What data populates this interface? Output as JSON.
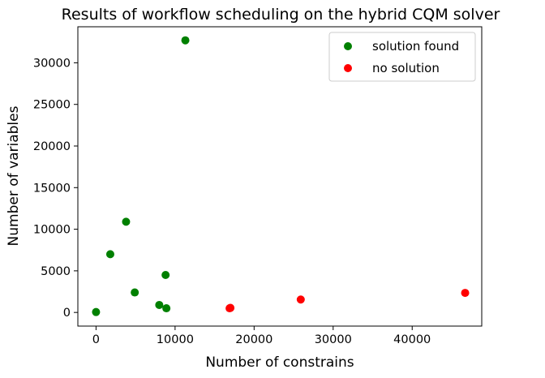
{
  "chart_data": {
    "type": "scatter",
    "title": "Results of workflow scheduling on the hybrid CQM solver",
    "xlabel": "Number of constrains",
    "ylabel": "Number of variables",
    "xlim": [
      -2300,
      48800
    ],
    "ylim": [
      -1640,
      34330
    ],
    "xticks": [
      0,
      10000,
      20000,
      30000,
      40000
    ],
    "yticks": [
      0,
      5000,
      10000,
      15000,
      20000,
      25000,
      30000
    ],
    "grid": false,
    "legend": "top-right",
    "series": [
      {
        "name": "solution found",
        "color": "#008000",
        "points": [
          {
            "x": 0,
            "y": 50
          },
          {
            "x": 1800,
            "y": 7000
          },
          {
            "x": 3800,
            "y": 10900
          },
          {
            "x": 4900,
            "y": 2400
          },
          {
            "x": 8000,
            "y": 900
          },
          {
            "x": 8800,
            "y": 4500
          },
          {
            "x": 8900,
            "y": 500
          },
          {
            "x": 11300,
            "y": 32700
          }
        ]
      },
      {
        "name": "no solution",
        "color": "#ff0000",
        "points": [
          {
            "x": 16900,
            "y": 500
          },
          {
            "x": 17000,
            "y": 550
          },
          {
            "x": 25900,
            "y": 1550
          },
          {
            "x": 46700,
            "y": 2350
          }
        ]
      }
    ]
  }
}
